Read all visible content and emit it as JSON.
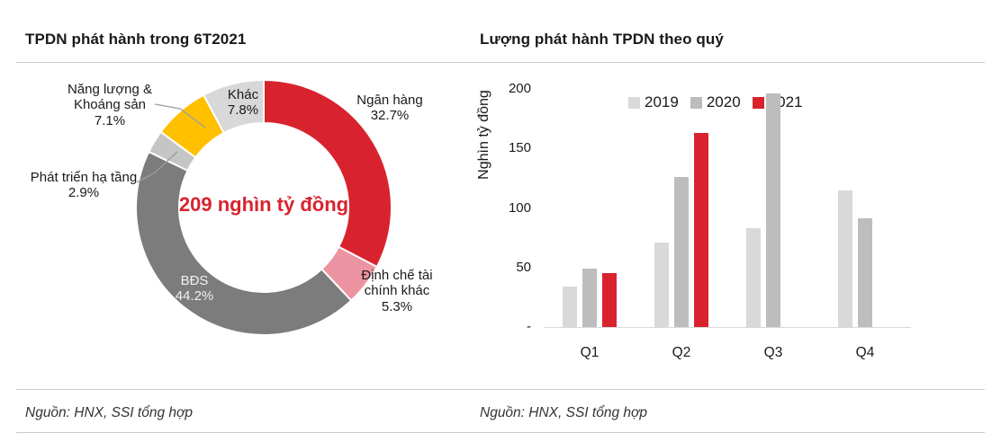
{
  "page": {
    "background": "#FFFFFF",
    "brand_red": "#D8232E",
    "rule_color": "#CBCBCB"
  },
  "left_panel": {
    "title": "TPDN phát hành trong 6T2021",
    "source": "Nguồn: HNX, SSI tổng hợp"
  },
  "right_panel": {
    "title": "Lượng phát hành TPDN theo quý",
    "source": "Nguồn: HNX, SSI tổng hợp"
  },
  "chart_data": [
    {
      "type": "pie",
      "subtype": "donut",
      "title": "TPDN phát hành trong 6T2021",
      "center_label": "209 nghìn tỷ đồng",
      "unit": "%",
      "direction": "clockwise",
      "start_angle_deg": 0,
      "slices": [
        {
          "label": "Ngân hàng",
          "pct_label": "32.7%",
          "value": 32.7,
          "color": "#D8232E"
        },
        {
          "label": "Định chế tài chính khác",
          "pct_label": "5.3%",
          "value": 5.3,
          "color": "#EC94A1"
        },
        {
          "label": "BĐS",
          "pct_label": "44.2%",
          "value": 44.2,
          "color": "#7C7C7C"
        },
        {
          "label": "Phát triển hạ tầng",
          "pct_label": "2.9%",
          "value": 2.9,
          "color": "#C5C5C5"
        },
        {
          "label": "Năng lượng & Khoáng sản",
          "pct_label": "7.1%",
          "value": 7.1,
          "color": "#FFC000"
        },
        {
          "label": "Khác",
          "pct_label": "7.8%",
          "value": 7.8,
          "color": "#D8D8D8"
        }
      ],
      "source": "Nguồn: HNX, SSI tổng hợp"
    },
    {
      "type": "bar",
      "title": "Lượng phát hành TPDN theo quý",
      "ylabel": "Nghìn tỷ đồng",
      "xlabel": "",
      "categories": [
        "Q1",
        "Q2",
        "Q3",
        "Q4"
      ],
      "series": [
        {
          "name": "2019",
          "color": "#D9D9D9",
          "values": [
            34,
            71,
            83,
            115
          ]
        },
        {
          "name": "2020",
          "color": "#BDBDBD",
          "values": [
            49,
            126,
            196,
            91
          ]
        },
        {
          "name": "2021",
          "color": "#D8232E",
          "values": [
            45,
            163,
            null,
            null
          ]
        }
      ],
      "ylim": [
        0,
        200
      ],
      "yticks": [
        {
          "label": "-",
          "value": 0
        },
        {
          "label": "50",
          "value": 50
        },
        {
          "label": "100",
          "value": 100
        },
        {
          "label": "150",
          "value": 150
        },
        {
          "label": "200",
          "value": 200
        }
      ],
      "grid": false,
      "legend_position": "top-center",
      "source": "Nguồn: HNX, SSI tổng hợp"
    }
  ]
}
